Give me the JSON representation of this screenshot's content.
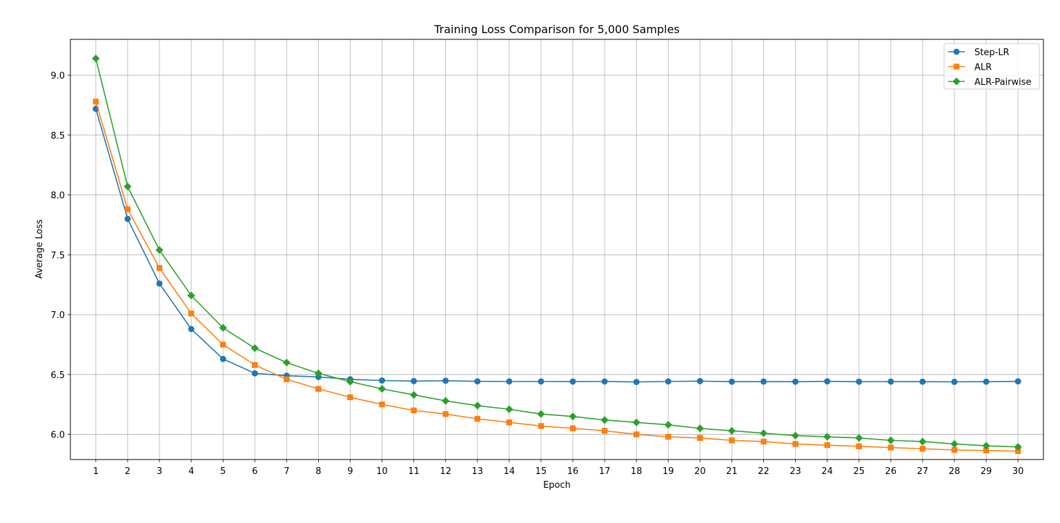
{
  "chart_data": {
    "type": "line",
    "title": "Training Loss Comparison for 5,000 Samples",
    "xlabel": "Epoch",
    "ylabel": "Average Loss",
    "x": [
      1,
      2,
      3,
      4,
      5,
      6,
      7,
      8,
      9,
      10,
      11,
      12,
      13,
      14,
      15,
      16,
      17,
      18,
      19,
      20,
      21,
      22,
      23,
      24,
      25,
      26,
      27,
      28,
      29,
      30
    ],
    "xlim": [
      0.2,
      30.8
    ],
    "ylim": [
      5.79,
      9.3
    ],
    "yticks": [
      6.0,
      6.5,
      7.0,
      7.5,
      8.0,
      8.5,
      9.0
    ],
    "ytick_labels": [
      "6.0",
      "6.5",
      "7.0",
      "7.5",
      "8.0",
      "8.5",
      "9.0"
    ],
    "xtick_labels": [
      "1",
      "2",
      "3",
      "4",
      "5",
      "6",
      "7",
      "8",
      "9",
      "10",
      "11",
      "12",
      "13",
      "14",
      "15",
      "16",
      "17",
      "18",
      "19",
      "20",
      "21",
      "22",
      "23",
      "24",
      "25",
      "26",
      "27",
      "28",
      "29",
      "30"
    ],
    "grid": true,
    "legend_position": "top-right",
    "series": [
      {
        "name": "Step-LR",
        "color": "#1f77b4",
        "marker": "circle",
        "values": [
          8.72,
          7.8,
          7.26,
          6.88,
          6.63,
          6.51,
          6.49,
          6.48,
          6.46,
          6.45,
          6.445,
          6.448,
          6.443,
          6.442,
          6.442,
          6.441,
          6.442,
          6.438,
          6.442,
          6.445,
          6.44,
          6.441,
          6.44,
          6.443,
          6.44,
          6.441,
          6.44,
          6.439,
          6.44,
          6.443
        ]
      },
      {
        "name": "ALR",
        "color": "#ff7f0e",
        "marker": "square",
        "values": [
          8.78,
          7.88,
          7.39,
          7.01,
          6.75,
          6.58,
          6.46,
          6.38,
          6.31,
          6.25,
          6.2,
          6.17,
          6.13,
          6.1,
          6.07,
          6.05,
          6.03,
          6.0,
          5.98,
          5.97,
          5.95,
          5.94,
          5.92,
          5.91,
          5.9,
          5.89,
          5.88,
          5.87,
          5.865,
          5.86
        ]
      },
      {
        "name": "ALR-Pairwise",
        "color": "#2ca02c",
        "marker": "diamond",
        "values": [
          9.14,
          8.07,
          7.54,
          7.16,
          6.89,
          6.72,
          6.6,
          6.51,
          6.44,
          6.38,
          6.33,
          6.28,
          6.24,
          6.21,
          6.17,
          6.15,
          6.12,
          6.1,
          6.08,
          6.05,
          6.03,
          6.01,
          5.99,
          5.98,
          5.97,
          5.95,
          5.94,
          5.92,
          5.905,
          5.895
        ]
      }
    ]
  }
}
